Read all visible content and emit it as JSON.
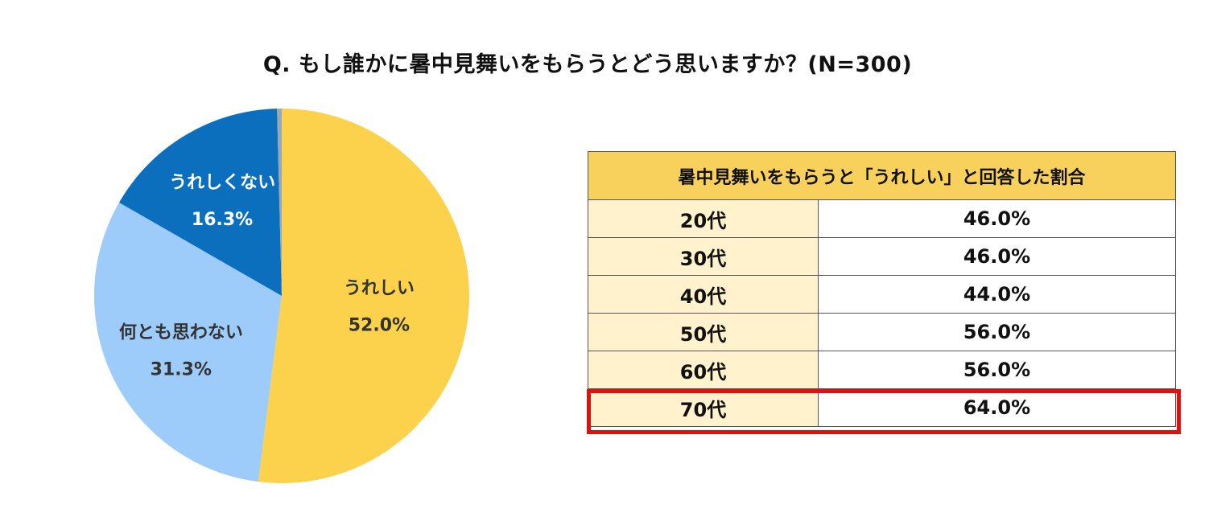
{
  "title": "Q. もし誰かに暑中見舞いをもらうとどう思いますか？(N=300)",
  "chart_data": [
    {
      "type": "pie",
      "slices": [
        {
          "label": "うれしい",
          "value": 52.0,
          "value_label": "52.0%",
          "color": "#fcd14c",
          "text_color": "#333333"
        },
        {
          "label": "何とも思わない",
          "value": 31.3,
          "value_label": "31.3%",
          "color": "#9dcbfa",
          "text_color": "#333333"
        },
        {
          "label": "うれしくない",
          "value": 16.3,
          "value_label": "16.3%",
          "color": "#0c6fbe",
          "text_color": "#ffffff"
        },
        {
          "label": "",
          "value": 0.4,
          "value_label": "",
          "color": "#9aa7b4",
          "text_color": "#ffffff"
        }
      ],
      "start_angle_deg": 0,
      "direction": "clockwise"
    },
    {
      "type": "table",
      "header": "暑中見舞いをもらうと「うれしい」と回答した割合",
      "rows": [
        {
          "age": "20代",
          "value": "46.0%"
        },
        {
          "age": "30代",
          "value": "46.0%"
        },
        {
          "age": "40代",
          "value": "44.0%"
        },
        {
          "age": "50代",
          "value": "56.0%"
        },
        {
          "age": "60代",
          "value": "56.0%"
        },
        {
          "age": "70代",
          "value": "64.0%"
        }
      ],
      "highlighted_row": "70代",
      "highlight_color": "#e01010",
      "header_color": "#f8d05c",
      "age_cell_color": "#fff2cc"
    }
  ]
}
